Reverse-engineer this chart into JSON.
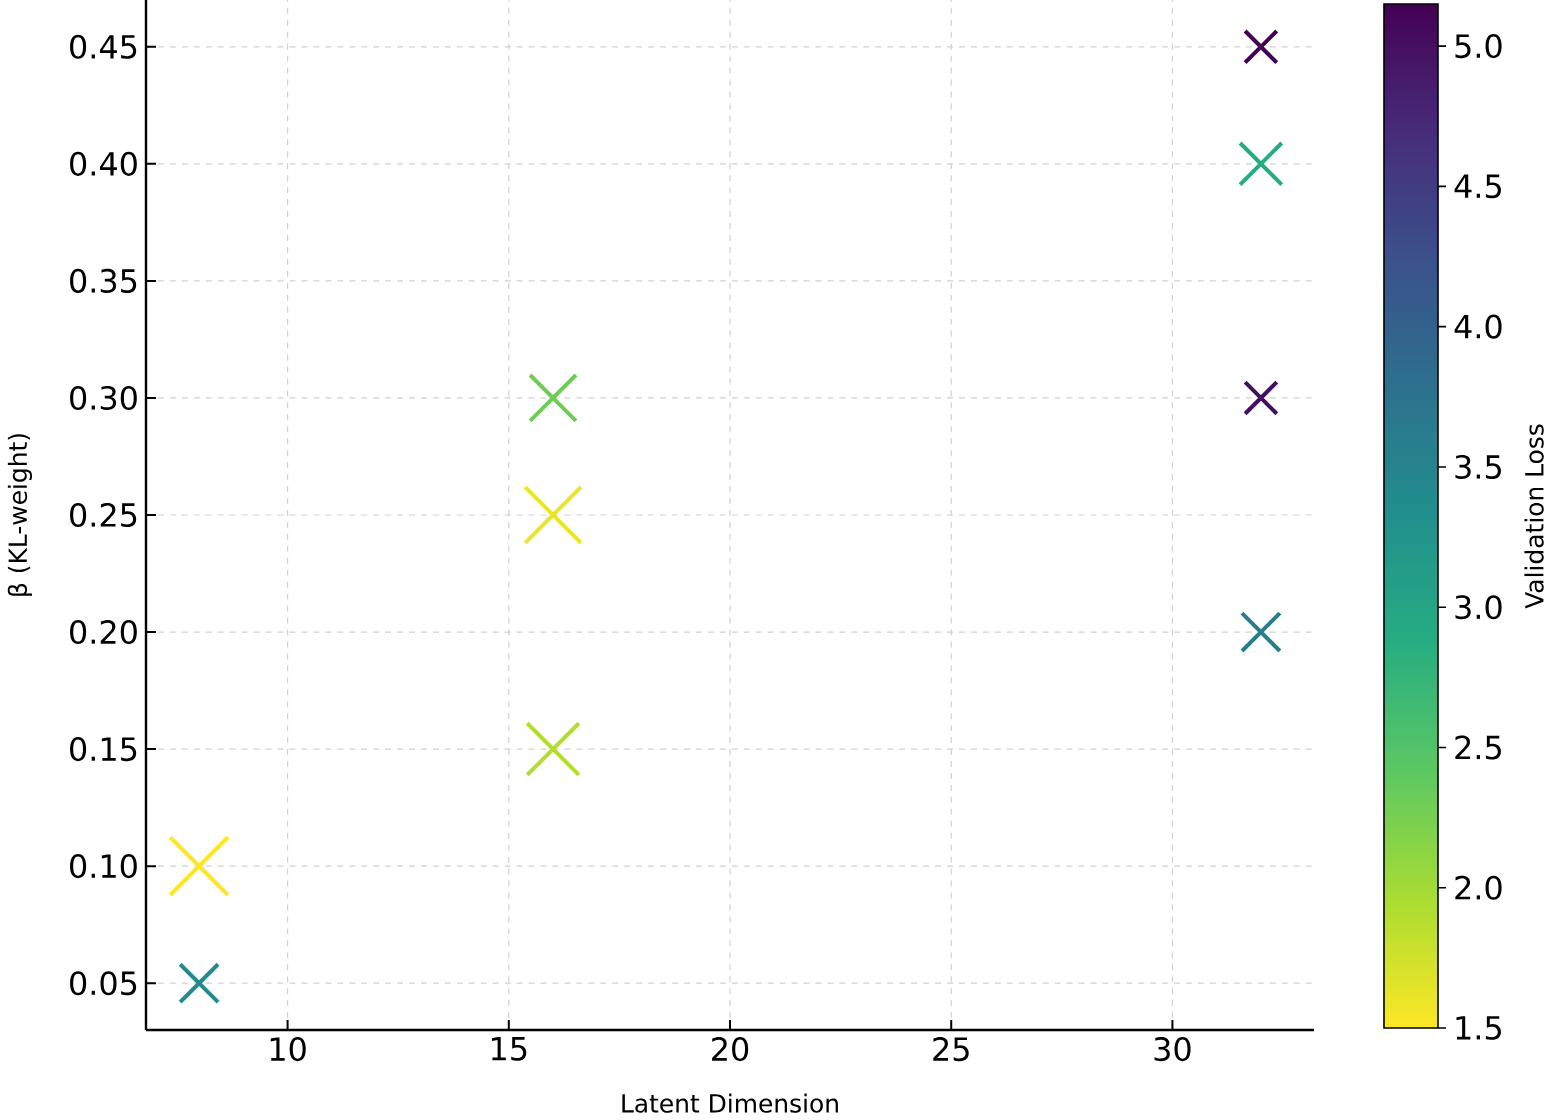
{
  "chart_data": {
    "type": "bubble",
    "xlabel": "Latent Dimension",
    "ylabel": "β (KL-weight)",
    "clabel": "Validation Loss",
    "x": [
      8,
      8,
      16,
      16,
      16,
      32,
      32,
      32,
      32
    ],
    "values": [
      0.05,
      0.1,
      0.15,
      0.25,
      0.3,
      0.2,
      0.3,
      0.4,
      0.45
    ],
    "cvalues": [
      3.4,
      1.5,
      1.9,
      1.6,
      2.3,
      3.6,
      5.0,
      2.9,
      5.15
    ],
    "sizes": [
      0.43,
      1,
      0.8,
      0.93,
      0.63,
      0.43,
      0.3,
      0.52,
      0.3
    ],
    "xlim": [
      6.8,
      33.2
    ],
    "ylim": [
      0.03,
      0.47
    ],
    "xticks": [
      10,
      15,
      20,
      25,
      30
    ],
    "yticks": [
      {
        "value": 0.05,
        "label": "0.05"
      },
      {
        "value": 0.1,
        "label": "0.10"
      },
      {
        "value": 0.15,
        "label": "0.15"
      },
      {
        "value": 0.2,
        "label": "0.20"
      },
      {
        "value": 0.25,
        "label": "0.25"
      },
      {
        "value": 0.3,
        "label": "0.30"
      },
      {
        "value": 0.35,
        "label": "0.35"
      },
      {
        "value": 0.4,
        "label": "0.40"
      },
      {
        "value": 0.45,
        "label": "0.45"
      }
    ],
    "clim": [
      1.5,
      5.15
    ],
    "cticks": [
      {
        "value": 1.5,
        "label": "1.5"
      },
      {
        "value": 2,
        "label": "2.0"
      },
      {
        "value": 2.5,
        "label": "2.5"
      },
      {
        "value": 3,
        "label": "3.0"
      },
      {
        "value": 3.5,
        "label": "3.5"
      },
      {
        "value": 4,
        "label": "4.0"
      },
      {
        "value": 4.5,
        "label": "4.5"
      },
      {
        "value": 5,
        "label": "5.0"
      }
    ],
    "grid": true,
    "marker": "cross"
  }
}
